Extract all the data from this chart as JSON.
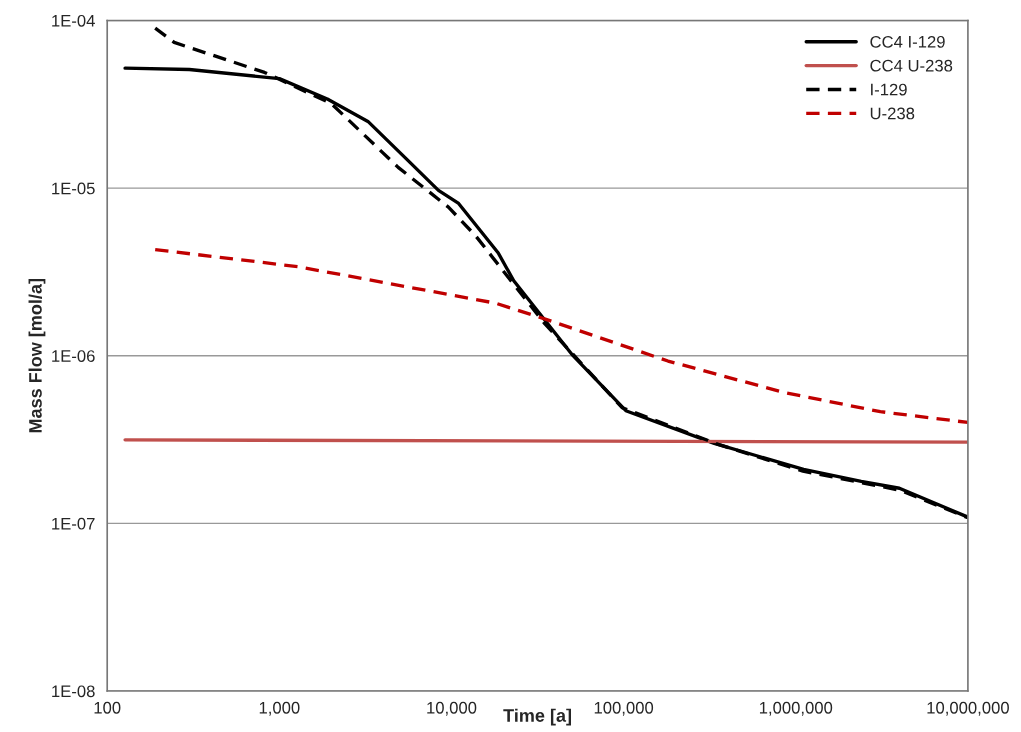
{
  "chart_data": {
    "type": "line",
    "xlabel": "Time [a]",
    "ylabel": "Mass Flow [mol/a]",
    "log": "xy",
    "grid": "y",
    "legend": "top right",
    "xlim": [
      100,
      10000000
    ],
    "xticks": [
      {
        "value": 100,
        "label": "100"
      },
      {
        "value": 1000,
        "label": "1,000"
      },
      {
        "value": 10000,
        "label": "10,000"
      },
      {
        "value": 100000,
        "label": "100,000"
      },
      {
        "value": 1000000,
        "label": "1,000,000"
      },
      {
        "value": 10000000,
        "label": "10,000,000"
      }
    ],
    "ylim": [
      1e-08,
      0.0001
    ],
    "yticks": [
      {
        "value": 1e-08,
        "label": "1E-08"
      },
      {
        "value": 1e-07,
        "label": "1E-07"
      },
      {
        "value": 1e-06,
        "label": "1E-06"
      },
      {
        "value": 1e-05,
        "label": "1E-05"
      },
      {
        "value": 0.0001,
        "label": "1E-04"
      }
    ],
    "series": [
      {
        "name": "CC4 I-129",
        "color": "#000000",
        "line_style": "solid",
        "x": [
          127,
          300,
          1000,
          1900,
          3270,
          5600,
          8400,
          11000,
          18700,
          23000,
          50000,
          103000,
          336000,
          1110000,
          2400000,
          4000000,
          10000000
        ],
        "values": [
          5.2e-05,
          5.1e-05,
          4.5e-05,
          3.4e-05,
          2.5e-05,
          1.46e-05,
          9.7e-06,
          8.1e-06,
          4.1e-06,
          2.8e-06,
          1.02e-06,
          4.7e-07,
          3e-07,
          2.1e-07,
          1.78e-07,
          1.62e-07,
          1.09e-07
        ]
      },
      {
        "name": "CC4 U-238",
        "color": "#c0504d",
        "line_style": "solid",
        "x": [
          127,
          10000000
        ],
        "values": [
          3.15e-07,
          3.05e-07
        ]
      },
      {
        "name": "I-129",
        "color": "#000000",
        "line_style": "dashed",
        "x": [
          190,
          245,
          820,
          2000,
          4900,
          9600,
          13800,
          34700,
          98000,
          355000,
          1100000,
          4000000,
          10000000
        ],
        "values": [
          9e-05,
          7.4e-05,
          4.9e-05,
          3.2e-05,
          1.33e-05,
          7.7e-06,
          5.2e-06,
          1.56e-06,
          4.9e-07,
          2.96e-07,
          2.05e-07,
          1.58e-07,
          1.08e-07
        ]
      },
      {
        "name": "U-238",
        "color": "#c00000",
        "line_style": "dashed",
        "x": [
          190,
          1280,
          18000,
          34700,
          181000,
          850000,
          3100000,
          10000000
        ],
        "values": [
          4.3e-06,
          3.4e-06,
          2.06e-06,
          1.66e-06,
          9.3e-07,
          6.05e-07,
          4.64e-07,
          4e-07
        ]
      }
    ]
  }
}
